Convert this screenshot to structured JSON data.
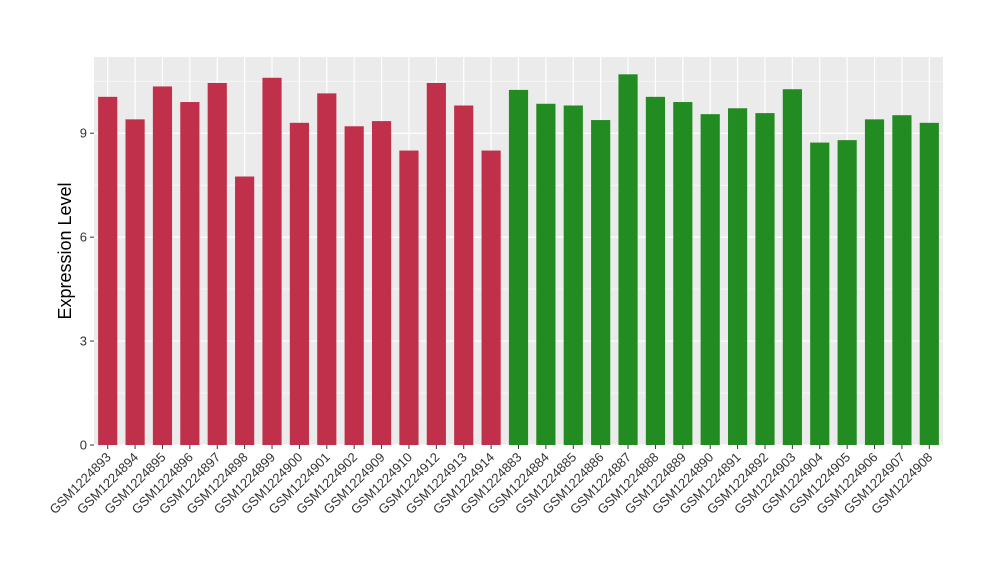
{
  "chart_data": {
    "type": "bar",
    "title": "",
    "xlabel": "",
    "ylabel": "Expression Level",
    "ylim": [
      0,
      11.2
    ],
    "yticks": [
      0,
      3,
      6,
      9
    ],
    "grid": true,
    "legend": "none",
    "colors": {
      "group1": "#c1304a",
      "group2": "#228b22",
      "panel": "#ebebeb",
      "grid": "#ffffff"
    },
    "categories": [
      "GSM1224893",
      "GSM1224894",
      "GSM1224895",
      "GSM1224896",
      "GSM1224897",
      "GSM1224898",
      "GSM1224899",
      "GSM1224900",
      "GSM1224901",
      "GSM1224902",
      "GSM1224909",
      "GSM1224910",
      "GSM1224912",
      "GSM1224913",
      "GSM1224914",
      "GSM1224883",
      "GSM1224884",
      "GSM1224885",
      "GSM1224886",
      "GSM1224887",
      "GSM1224888",
      "GSM1224889",
      "GSM1224890",
      "GSM1224891",
      "GSM1224892",
      "GSM1224903",
      "GSM1224904",
      "GSM1224905",
      "GSM1224906",
      "GSM1224907",
      "GSM1224908"
    ],
    "values": [
      10.05,
      9.4,
      10.35,
      9.9,
      10.45,
      7.75,
      10.6,
      9.3,
      10.15,
      9.2,
      9.35,
      8.5,
      10.45,
      9.8,
      8.5,
      10.25,
      9.85,
      9.8,
      9.38,
      10.7,
      10.05,
      9.9,
      9.55,
      9.72,
      9.58,
      10.27,
      8.73,
      8.8,
      9.4,
      9.52,
      9.3
    ],
    "groups": [
      "group1",
      "group1",
      "group1",
      "group1",
      "group1",
      "group1",
      "group1",
      "group1",
      "group1",
      "group1",
      "group1",
      "group1",
      "group1",
      "group1",
      "group1",
      "group2",
      "group2",
      "group2",
      "group2",
      "group2",
      "group2",
      "group2",
      "group2",
      "group2",
      "group2",
      "group2",
      "group2",
      "group2",
      "group2",
      "group2",
      "group2"
    ]
  }
}
